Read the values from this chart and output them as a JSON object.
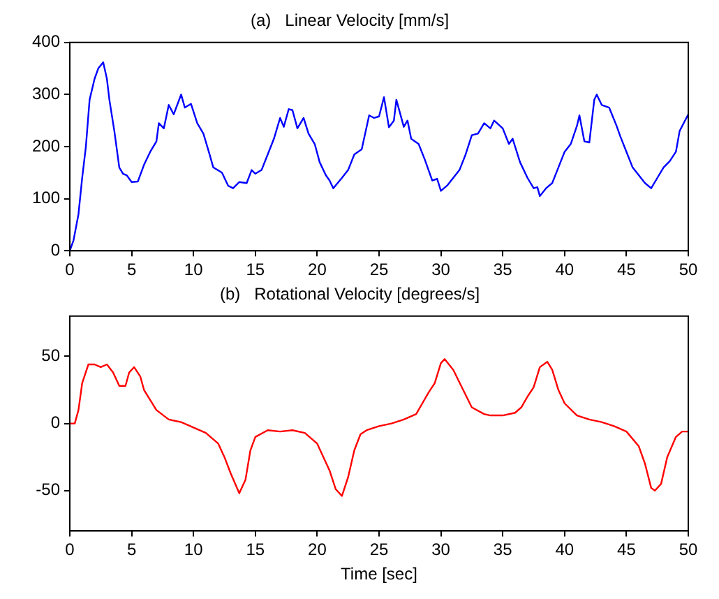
{
  "chart_data": [
    {
      "type": "line",
      "title": "(a)   Linear Velocity [mm/s]",
      "xlim": [
        0,
        50
      ],
      "xticks": [
        0,
        5,
        10,
        15,
        20,
        25,
        30,
        35,
        40,
        45,
        50
      ],
      "ylim": [
        0,
        400
      ],
      "yticks": [
        0,
        100,
        200,
        300,
        400
      ],
      "x": [
        0,
        0.3,
        0.7,
        1,
        1.3,
        1.6,
        2,
        2.3,
        2.7,
        3,
        3.2,
        3.6,
        4,
        4.3,
        4.6,
        5,
        5.5,
        6,
        6.5,
        7,
        7.2,
        7.6,
        8,
        8.4,
        9,
        9.3,
        9.8,
        10.3,
        10.8,
        11.3,
        11.6,
        12.3,
        12.8,
        13.2,
        13.7,
        14.3,
        14.7,
        15,
        15.5,
        16,
        16.5,
        17,
        17.3,
        17.7,
        18,
        18.4,
        18.9,
        19.3,
        19.8,
        20.2,
        20.7,
        21,
        21.3,
        22,
        22.5,
        23,
        23.6,
        24.2,
        24.6,
        25,
        25.4,
        25.8,
        26.2,
        26.4,
        27,
        27.3,
        27.6,
        28.2,
        28.7,
        29.3,
        29.7,
        30,
        30.5,
        31,
        31.5,
        32,
        32.5,
        33,
        33.5,
        34,
        34.3,
        35,
        35.5,
        35.8,
        36.4,
        37,
        37.5,
        37.8,
        38,
        38.5,
        39,
        39.5,
        40,
        40.5,
        41,
        41.2,
        41.6,
        42,
        42.4,
        42.6,
        43,
        43.6,
        44.2,
        44.5,
        45,
        45.5,
        46,
        46.5,
        47,
        47.5,
        48,
        48.5,
        49,
        49.3,
        50
      ],
      "series": [
        {
          "color": "#0000ff",
          "values": [
            0,
            20,
            70,
            140,
            200,
            290,
            330,
            350,
            362,
            330,
            290,
            230,
            160,
            148,
            145,
            132,
            133,
            165,
            190,
            210,
            245,
            235,
            280,
            262,
            300,
            275,
            282,
            245,
            225,
            185,
            160,
            150,
            125,
            120,
            132,
            130,
            155,
            148,
            155,
            185,
            215,
            255,
            238,
            272,
            270,
            235,
            255,
            225,
            205,
            170,
            145,
            135,
            120,
            140,
            155,
            185,
            195,
            260,
            255,
            258,
            295,
            237,
            250,
            290,
            238,
            250,
            215,
            205,
            175,
            135,
            138,
            115,
            125,
            140,
            155,
            185,
            222,
            225,
            245,
            235,
            250,
            235,
            205,
            215,
            170,
            140,
            120,
            122,
            105,
            120,
            130,
            160,
            190,
            205,
            240,
            260,
            210,
            208,
            290,
            300,
            280,
            275,
            240,
            220,
            190,
            160,
            145,
            130,
            120,
            140,
            160,
            172,
            190,
            230,
            262
          ]
        }
      ]
    },
    {
      "type": "line",
      "title": "(b)   Rotational Velocity [degrees/s]",
      "xlabel": "Time [sec]",
      "xlim": [
        0,
        50
      ],
      "xticks": [
        0,
        5,
        10,
        15,
        20,
        25,
        30,
        35,
        40,
        45,
        50
      ],
      "ylim": [
        -80,
        80
      ],
      "yticks": [
        -50,
        0,
        50
      ],
      "x": [
        0,
        0.4,
        0.7,
        1,
        1.5,
        2,
        2.5,
        3,
        3.5,
        4,
        4.5,
        4.8,
        5.2,
        5.7,
        6,
        7,
        8,
        9,
        10,
        11,
        12,
        12.5,
        13,
        13.7,
        14.2,
        14.6,
        15,
        16,
        17,
        18,
        19,
        20,
        21,
        21.5,
        22,
        22.5,
        23,
        23.5,
        24,
        25,
        26,
        27,
        28,
        28.5,
        29,
        29.5,
        30,
        30.3,
        31,
        31.8,
        32.5,
        33.5,
        34,
        35,
        36,
        36.5,
        37,
        37.5,
        38,
        38.6,
        39,
        39.5,
        40,
        41,
        42,
        43,
        44,
        45,
        46,
        46.5,
        47,
        47.3,
        47.8,
        48.3,
        49,
        49.5,
        50
      ],
      "series": [
        {
          "color": "#ff0000",
          "values": [
            0,
            0,
            10,
            30,
            44,
            44,
            42,
            44,
            38,
            28,
            28,
            38,
            42,
            35,
            25,
            10,
            3,
            1,
            -3,
            -7,
            -15,
            -25,
            -37,
            -52,
            -42,
            -20,
            -10,
            -5,
            -6,
            -5,
            -7,
            -15,
            -35,
            -49,
            -54,
            -40,
            -20,
            -8,
            -5,
            -2,
            0,
            3,
            7,
            15,
            23,
            30,
            45,
            48,
            40,
            25,
            12,
            7,
            6,
            6,
            8,
            12,
            20,
            27,
            42,
            46,
            40,
            25,
            15,
            6,
            3,
            1,
            -2,
            -6,
            -17,
            -30,
            -48,
            -50,
            -45,
            -25,
            -10,
            -6,
            -6
          ]
        }
      ]
    }
  ]
}
